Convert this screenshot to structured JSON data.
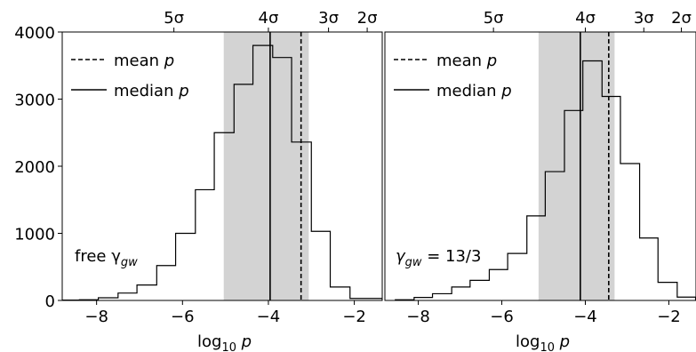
{
  "chart_data": [
    {
      "type": "histogram",
      "panel": "left",
      "annotation": "free γ",
      "annotation_sub": "gw",
      "xlabel": "log",
      "xlabel_sub": "10",
      "xlabel_var": "p",
      "ylabel": "",
      "xlim": [
        -8.8,
        -1.35
      ],
      "ylim": [
        0,
        4000
      ],
      "x_ticks": [
        -8,
        -6,
        -4,
        -2
      ],
      "x_tick_labels": [
        "−8",
        "−6",
        "−4",
        "−2"
      ],
      "y_ticks": [
        0,
        1000,
        2000,
        3000,
        4000
      ],
      "y_tick_labels": [
        "0",
        "1000",
        "2000",
        "3000",
        "4000"
      ],
      "top_axis_ticks": [
        {
          "x": -6.2,
          "label": "5σ"
        },
        {
          "x": -4.0,
          "label": "4σ"
        },
        {
          "x": -2.6,
          "label": "3σ"
        },
        {
          "x": -1.7,
          "label": "2σ"
        }
      ],
      "bin_edges": [
        -8.8,
        -8.4,
        -7.96,
        -7.5,
        -7.06,
        -6.6,
        -6.16,
        -5.7,
        -5.26,
        -4.8,
        -4.36,
        -3.9,
        -3.46,
        -3.0,
        -2.56,
        -2.1,
        -1.66,
        -1.35
      ],
      "counts": [
        5,
        10,
        40,
        110,
        230,
        520,
        1000,
        1650,
        2500,
        3220,
        3800,
        3620,
        2360,
        1030,
        200,
        30,
        30
      ],
      "shaded_band": [
        -5.04,
        -3.06
      ],
      "mean_p": -3.24,
      "median_p": -3.96,
      "legend": [
        {
          "label": "mean",
          "var": "p",
          "style": "dashed"
        },
        {
          "label": "median",
          "var": "p",
          "style": "solid"
        }
      ],
      "legend_position": "upper-left"
    },
    {
      "type": "histogram",
      "panel": "right",
      "annotation": "γ",
      "annotation_sub": "gw",
      "annotation_suffix": " = 13/3",
      "xlabel": "log",
      "xlabel_sub": "10",
      "xlabel_var": "p",
      "ylabel": "",
      "xlim": [
        -8.8,
        -1.35
      ],
      "ylim": [
        0,
        4000
      ],
      "x_ticks": [
        -8,
        -6,
        -4,
        -2
      ],
      "x_tick_labels": [
        "−8",
        "−6",
        "−4",
        "−2"
      ],
      "top_axis_ticks": [
        {
          "x": -6.2,
          "label": "5σ"
        },
        {
          "x": -4.0,
          "label": "4σ"
        },
        {
          "x": -2.6,
          "label": "3σ"
        },
        {
          "x": -1.7,
          "label": "2σ"
        }
      ],
      "bin_edges": [
        -8.55,
        -8.1,
        -7.66,
        -7.2,
        -6.76,
        -6.3,
        -5.86,
        -5.4,
        -4.96,
        -4.5,
        -4.06,
        -3.6,
        -3.16,
        -2.7,
        -2.26,
        -1.8,
        -1.36
      ],
      "counts": [
        10,
        45,
        100,
        200,
        300,
        460,
        700,
        1260,
        1920,
        2830,
        3570,
        3040,
        2040,
        930,
        270,
        50
      ],
      "shaded_band": [
        -5.12,
        -3.3
      ],
      "mean_p": -3.44,
      "median_p": -4.12,
      "legend": [
        {
          "label": "mean",
          "var": "p",
          "style": "dashed"
        },
        {
          "label": "median",
          "var": "p",
          "style": "solid"
        }
      ],
      "legend_position": "upper-left"
    }
  ]
}
